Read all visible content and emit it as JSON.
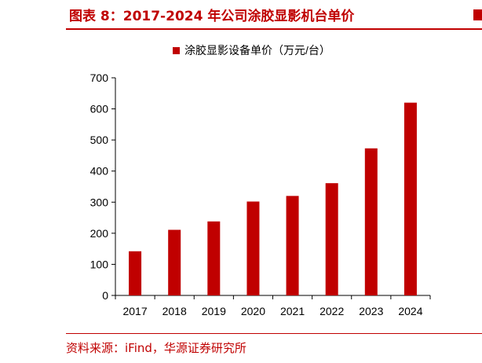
{
  "header": {
    "title": "图表 8：2017-2024 年公司涂胶显影机台单价"
  },
  "footer": {
    "source": "资料来源：iFind，华源证券研究所"
  },
  "colors": {
    "accent": "#c00000",
    "bar": "#c00000"
  },
  "chart_data": {
    "type": "bar",
    "categories": [
      "2017",
      "2018",
      "2019",
      "2020",
      "2021",
      "2022",
      "2023",
      "2024"
    ],
    "series": [
      {
        "name": "涂胶显影设备单价（万元/台）",
        "values": [
          142,
          211,
          238,
          302,
          320,
          361,
          473,
          620
        ]
      }
    ],
    "ylim": [
      0,
      700
    ],
    "yticks": [
      0,
      100,
      200,
      300,
      400,
      500,
      600,
      700
    ],
    "legend": "top-center",
    "grid": false
  }
}
